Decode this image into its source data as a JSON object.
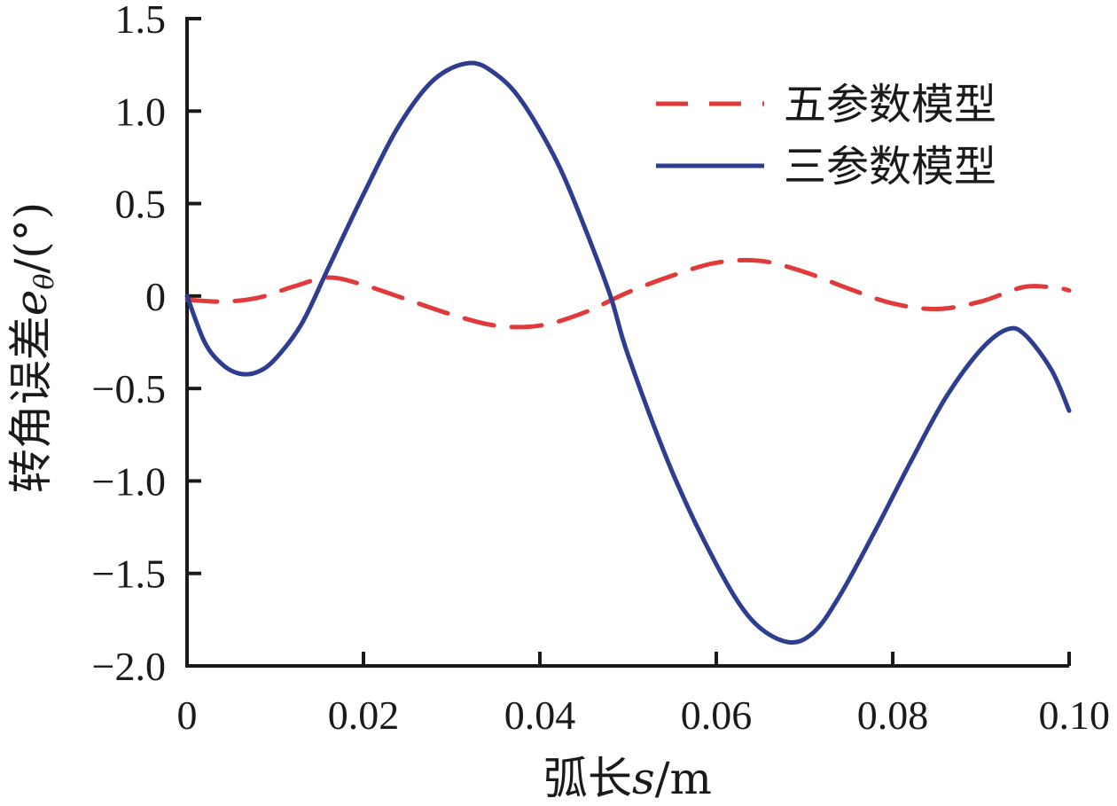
{
  "chart_data": {
    "type": "line",
    "xlabel_main": "弧长",
    "xlabel_var": "s",
    "xlabel_unit": "/m",
    "ylabel_main": "转角误差",
    "ylabel_var": "e",
    "ylabel_sub": "θ",
    "ylabel_unit": "/(°)",
    "xlim": [
      0,
      0.1
    ],
    "ylim": [
      -2.0,
      1.5
    ],
    "x_ticks": [
      0,
      0.02,
      0.04,
      0.06,
      0.08,
      0.1
    ],
    "x_tick_labels": [
      "0",
      "0.02",
      "0.04",
      "0.06",
      "0.08",
      "0.10"
    ],
    "y_ticks": [
      1.5,
      1.0,
      0.5,
      0,
      -0.5,
      -1.0,
      -1.5,
      -2.0
    ],
    "y_tick_labels": [
      "1.5",
      "1.0",
      "0.5",
      "0",
      "−0.5",
      "−1.0",
      "−1.5",
      "−2.0"
    ],
    "grid": false,
    "legend_position": "top-right",
    "series": [
      {
        "name": "五参数模型",
        "color": "#e03a3a",
        "dash": "dashed",
        "points": [
          [
            0,
            -0.02
          ],
          [
            0.004,
            -0.03
          ],
          [
            0.008,
            -0.01
          ],
          [
            0.012,
            0.05
          ],
          [
            0.016,
            0.1
          ],
          [
            0.02,
            0.06
          ],
          [
            0.025,
            -0.02
          ],
          [
            0.03,
            -0.1
          ],
          [
            0.035,
            -0.16
          ],
          [
            0.04,
            -0.16
          ],
          [
            0.045,
            -0.09
          ],
          [
            0.05,
            0.02
          ],
          [
            0.055,
            0.11
          ],
          [
            0.06,
            0.18
          ],
          [
            0.065,
            0.19
          ],
          [
            0.07,
            0.13
          ],
          [
            0.075,
            0.04
          ],
          [
            0.08,
            -0.04
          ],
          [
            0.085,
            -0.07
          ],
          [
            0.09,
            -0.03
          ],
          [
            0.095,
            0.05
          ],
          [
            0.099,
            0.04
          ],
          [
            0.1,
            0.03
          ]
        ]
      },
      {
        "name": "三参数模型",
        "color": "#2e3d8f",
        "dash": "solid",
        "points": [
          [
            0,
            0
          ],
          [
            0.002,
            -0.25
          ],
          [
            0.004,
            -0.37
          ],
          [
            0.006,
            -0.42
          ],
          [
            0.008,
            -0.41
          ],
          [
            0.01,
            -0.34
          ],
          [
            0.013,
            -0.15
          ],
          [
            0.016,
            0.15
          ],
          [
            0.02,
            0.55
          ],
          [
            0.024,
            0.92
          ],
          [
            0.028,
            1.17
          ],
          [
            0.032,
            1.26
          ],
          [
            0.035,
            1.2
          ],
          [
            0.038,
            1.05
          ],
          [
            0.042,
            0.72
          ],
          [
            0.045,
            0.38
          ],
          [
            0.048,
            0.0
          ],
          [
            0.05,
            -0.32
          ],
          [
            0.055,
            -0.95
          ],
          [
            0.06,
            -1.45
          ],
          [
            0.064,
            -1.75
          ],
          [
            0.068,
            -1.87
          ],
          [
            0.071,
            -1.82
          ],
          [
            0.074,
            -1.62
          ],
          [
            0.078,
            -1.27
          ],
          [
            0.082,
            -0.9
          ],
          [
            0.086,
            -0.55
          ],
          [
            0.09,
            -0.29
          ],
          [
            0.093,
            -0.18
          ],
          [
            0.095,
            -0.21
          ],
          [
            0.098,
            -0.4
          ],
          [
            0.1,
            -0.62
          ]
        ]
      }
    ]
  }
}
